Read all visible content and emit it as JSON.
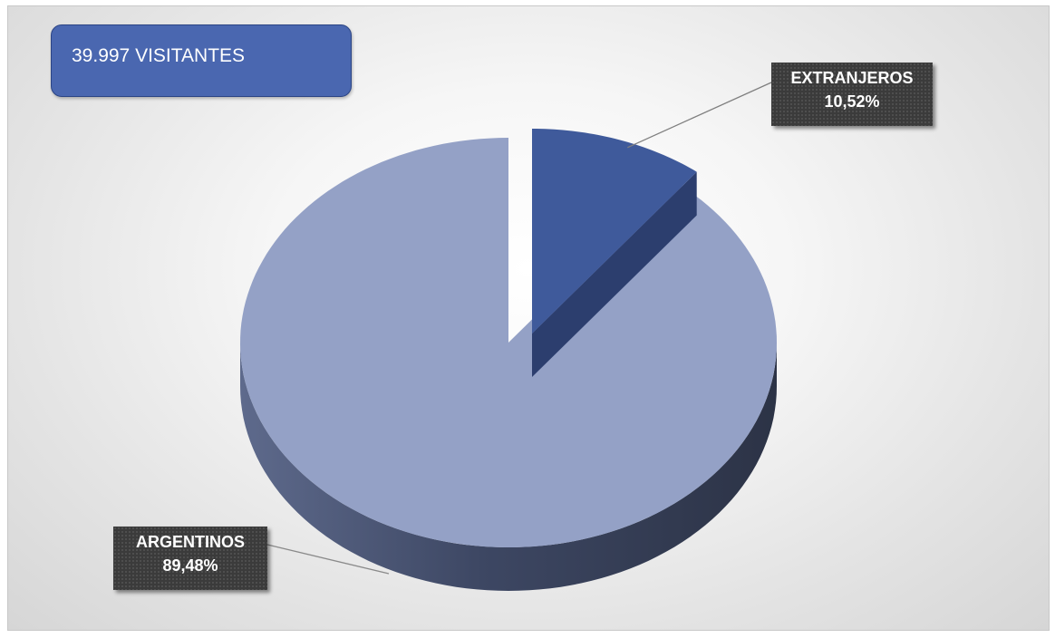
{
  "title": "39.997 VISITANTES",
  "colors": {
    "argentinos_top": "#94a1c6",
    "argentinos_side": "#3b4560",
    "extranjeros_top": "#3f5a9b",
    "extranjeros_side": "#2c3e6e",
    "title_box": "#4a67b0"
  },
  "chart_data": {
    "type": "pie",
    "style": "3d-exploded",
    "title": "39.997 VISITANTES",
    "slices": [
      {
        "name": "EXTRANJEROS",
        "value": 10.52,
        "label": "10,52%",
        "exploded": true
      },
      {
        "name": "ARGENTINOS",
        "value": 89.48,
        "label": "89,48%",
        "exploded": false
      }
    ],
    "legend": "none"
  }
}
